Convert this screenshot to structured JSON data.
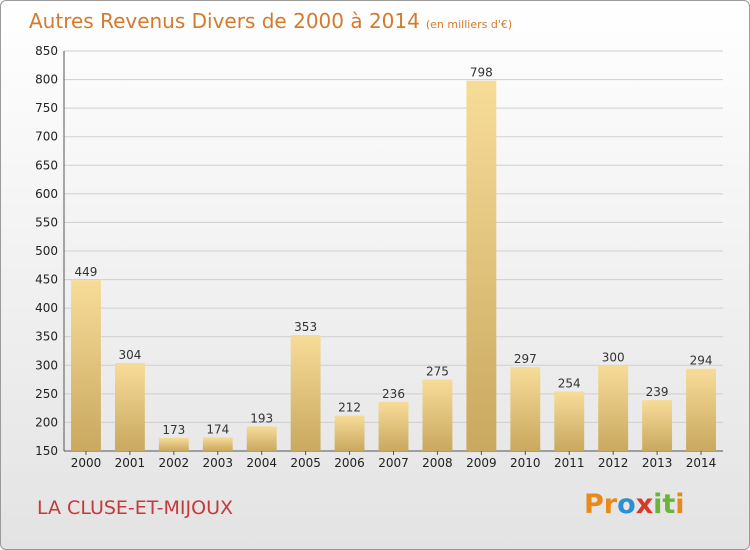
{
  "title": "Autres Revenus Divers de 2000 à 2014",
  "subtitle": "(en milliers d'€)",
  "place": "LA CLUSE-ET-MIJOUX",
  "logo": {
    "letters": [
      "P",
      "r",
      "o",
      "x",
      "i",
      "t",
      "i"
    ],
    "colors": [
      "#e88a1a",
      "#e88a1a",
      "#2a8fd4",
      "#d43a2a",
      "#6ab43a",
      "#6ab43a",
      "#e88a1a"
    ]
  },
  "chart_data": {
    "type": "bar",
    "categories": [
      "2000",
      "2001",
      "2002",
      "2003",
      "2004",
      "2005",
      "2006",
      "2007",
      "2008",
      "2009",
      "2010",
      "2011",
      "2012",
      "2013",
      "2014"
    ],
    "values": [
      449,
      304,
      173,
      174,
      193,
      353,
      212,
      236,
      275,
      798,
      297,
      254,
      300,
      239,
      294
    ],
    "ylim": [
      150,
      850
    ],
    "yticks": [
      150,
      200,
      250,
      300,
      350,
      400,
      450,
      500,
      550,
      600,
      650,
      700,
      750,
      800,
      850
    ],
    "grid": true,
    "colors": {
      "bar_light": "#f7dc98",
      "bar_dark": "#c9a85f",
      "grid": "#cfcfcf",
      "title": "#d47a2c",
      "place": "#c43a3a"
    }
  }
}
